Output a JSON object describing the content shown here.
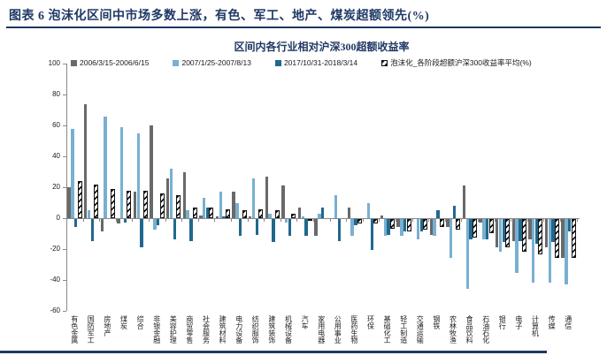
{
  "header": {
    "title": "图表 6   泡沫化区间中市场多数上涨，有色、军工、地产、煤炭超额领先(%)"
  },
  "colors": {
    "accent_navy": "#1f3864",
    "axis_gray": "#8a8a8a",
    "series_2006": "#696969",
    "series_2007": "#79b0cf",
    "series_2017": "#21688e",
    "hatch_black": "#111111"
  },
  "chart_data": {
    "type": "bar",
    "title": "区间内各行业相对沪深300超额收益率",
    "grid": false,
    "legend_position": "top",
    "ylim": [
      -60,
      100
    ],
    "yticks": [
      100,
      80,
      60,
      40,
      20,
      0,
      -20,
      -40,
      -60
    ],
    "categories": [
      "有色金属",
      "国防军工",
      "房地产",
      "煤炭",
      "综合",
      "非银金融",
      "美容护理",
      "商贸零售",
      "社会服务",
      "建筑材料",
      "电力设备",
      "纺织服饰",
      "建筑装饰",
      "机械设备",
      "汽车",
      "家用电器",
      "公用事业",
      "医药生物",
      "环保",
      "基础化工",
      "轻工制造",
      "交通运输",
      "钢铁",
      "农林牧渔",
      "食品饮料",
      "石油石化",
      "银行",
      "电子",
      "计算机",
      "传媒",
      "通信"
    ],
    "series": [
      {
        "name": "2006/3/15-2006/6/15",
        "color": "#696969",
        "pattern": "solid",
        "values": [
          20,
          74,
          -8,
          -3,
          17,
          60,
          26,
          30,
          2,
          1,
          17,
          1,
          27,
          21,
          7,
          -11,
          0,
          7,
          0,
          2,
          -5,
          0,
          -10,
          -5,
          21,
          -2,
          -18,
          -14,
          -13,
          -18,
          -25
        ]
      },
      {
        "name": "2007/1/25-2007/8/13",
        "color": "#79b0cf",
        "pattern": "solid",
        "values": [
          58,
          5,
          66,
          59,
          55,
          -7,
          32,
          5,
          13,
          17,
          10,
          26,
          3,
          -2,
          1,
          3,
          15,
          -11,
          10,
          -11,
          -11,
          -13,
          -11,
          -25,
          -45,
          -13,
          -21,
          -35,
          -41,
          -41,
          -42
        ]
      },
      {
        "name": "2017/10/31-2018/3/14",
        "color": "#21688e",
        "pattern": "solid",
        "values": [
          -5,
          -14,
          0,
          -2,
          -18,
          -4,
          -13,
          -14,
          7,
          1,
          -11,
          -10,
          -15,
          -11,
          -11,
          7,
          -14,
          -4,
          -20,
          -10,
          -8,
          -8,
          5,
          8,
          -13,
          -13,
          -15,
          -14,
          -16,
          -15,
          -8
        ]
      },
      {
        "name": "泡沫化_各阶段超额沪深300收益率平均(%)",
        "color": "#111111",
        "pattern": "diagonal-hatch",
        "values": [
          24,
          22,
          19,
          18,
          18,
          16,
          15,
          7,
          7,
          6,
          5,
          6,
          5,
          3,
          -1,
          0,
          0,
          -3,
          -3,
          -6,
          -8,
          -7,
          -5,
          -7,
          -12,
          -9,
          -18,
          -21,
          -23,
          -25,
          -25
        ]
      }
    ]
  }
}
